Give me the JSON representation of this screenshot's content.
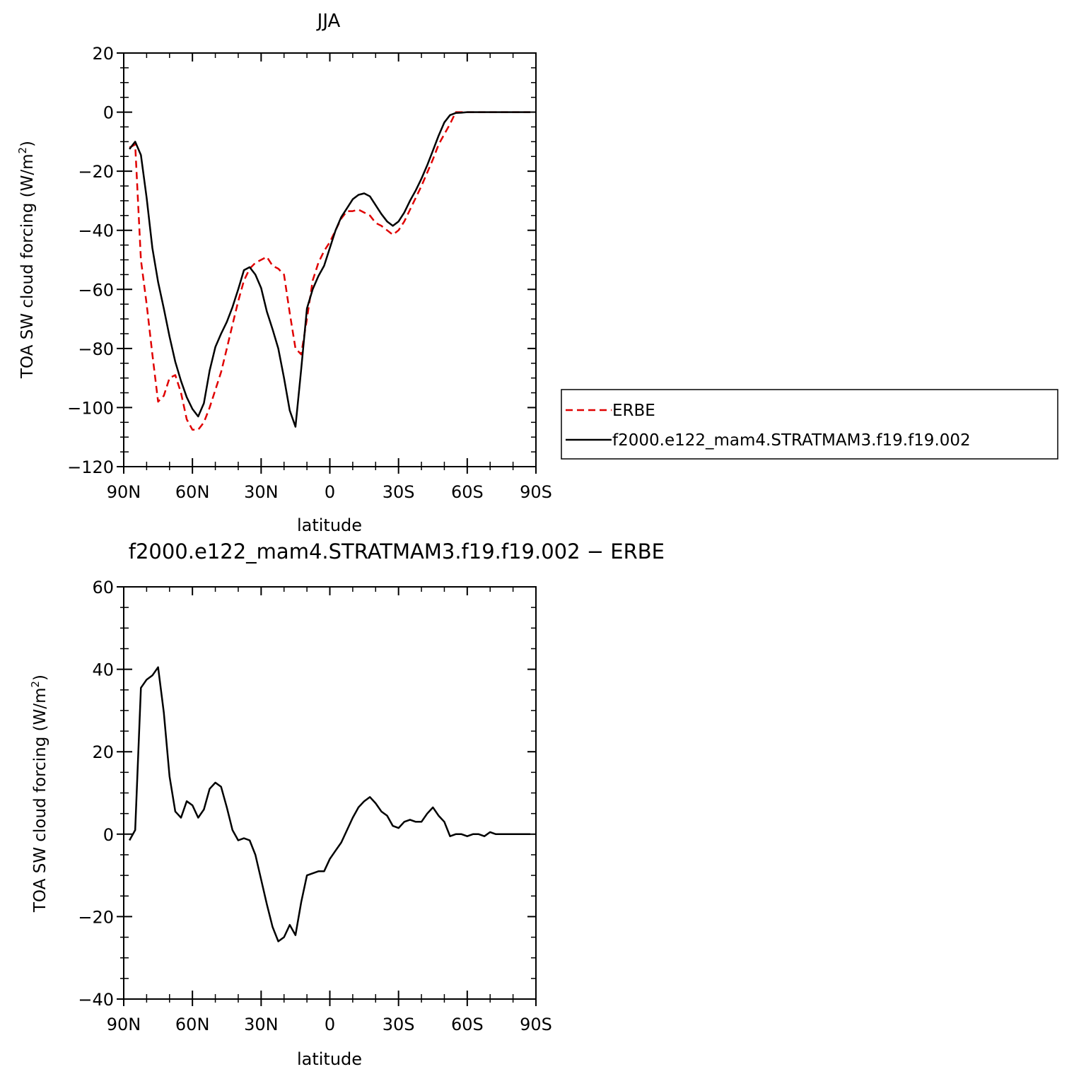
{
  "chart_data": [
    {
      "type": "line",
      "title": "JJA",
      "xlabel": "latitude",
      "ylabel": "TOA SW cloud forcing (W/m",
      "ylabel_sup": "2",
      "ylabel_close": ")",
      "xlim": [
        90,
        -90
      ],
      "ylim": [
        -120,
        20
      ],
      "x_ticks": [
        {
          "value": 90,
          "label": "90N"
        },
        {
          "value": 60,
          "label": "60N"
        },
        {
          "value": 30,
          "label": "30N"
        },
        {
          "value": 0,
          "label": "0"
        },
        {
          "value": -30,
          "label": "30S"
        },
        {
          "value": -60,
          "label": "60S"
        },
        {
          "value": -90,
          "label": "90S"
        }
      ],
      "y_ticks": [
        {
          "value": 20,
          "label": "20"
        },
        {
          "value": 0,
          "label": "0"
        },
        {
          "value": -20,
          "label": "−20"
        },
        {
          "value": -40,
          "label": "−40"
        },
        {
          "value": -60,
          "label": "−60"
        },
        {
          "value": -80,
          "label": "−80"
        },
        {
          "value": -100,
          "label": "−100"
        },
        {
          "value": -120,
          "label": "−120"
        }
      ],
      "grid": false,
      "legend_position": "right",
      "series": [
        {
          "name": "ERBE",
          "color": "#e00000",
          "dash": "dashed",
          "x": [
            87.5,
            85,
            82.5,
            80,
            77.5,
            75,
            72.5,
            70,
            67.5,
            65,
            62.5,
            60,
            57.5,
            55,
            52.5,
            50,
            47.5,
            45,
            42.5,
            40,
            37.5,
            35,
            32.5,
            30,
            27.5,
            25,
            22.5,
            20,
            17.5,
            15,
            12.5,
            10,
            7.5,
            5,
            2.5,
            0,
            -2.5,
            -5,
            -7.5,
            -10,
            -12.5,
            -15,
            -17.5,
            -20,
            -22.5,
            -25,
            -27.5,
            -30,
            -32.5,
            -35,
            -37.5,
            -40,
            -42.5,
            -45,
            -47.5,
            -50,
            -52.5,
            -55,
            -57.5,
            -60,
            -62.5,
            -65,
            -67.5,
            -70,
            -72.5,
            -75,
            -77.5,
            -80,
            -82.5,
            -85,
            -87.5
          ],
          "y": [
            -12,
            -11,
            -50,
            -65,
            -82,
            -98,
            -96,
            -90,
            -89,
            -95,
            -104,
            -107.5,
            -107.5,
            -105,
            -100,
            -94,
            -88,
            -80,
            -72,
            -64,
            -57,
            -53,
            -51,
            -50,
            -49,
            -52,
            -53,
            -55,
            -68,
            -80,
            -82,
            -70,
            -57,
            -51,
            -47,
            -44,
            -40,
            -36,
            -33.5,
            -33.5,
            -33,
            -34,
            -35,
            -37.5,
            -38.5,
            -40,
            -41.5,
            -40,
            -37,
            -33,
            -29,
            -25,
            -20.5,
            -16,
            -11,
            -7.5,
            -4,
            0,
            0,
            0,
            0,
            0,
            0,
            0,
            0,
            0,
            0,
            0,
            0,
            0,
            0
          ]
        },
        {
          "name": "f2000.e122_mam4.STRATMAM3.f19.f19.002",
          "color": "#000000",
          "dash": "solid",
          "x": [
            87.5,
            85,
            82.5,
            80,
            77.5,
            75,
            72.5,
            70,
            67.5,
            65,
            62.5,
            60,
            57.5,
            55,
            52.5,
            50,
            47.5,
            45,
            42.5,
            40,
            37.5,
            35,
            32.5,
            30,
            27.5,
            25,
            22.5,
            20,
            17.5,
            15,
            12.5,
            10,
            7.5,
            5,
            2.5,
            0,
            -2.5,
            -5,
            -7.5,
            -10,
            -12.5,
            -15,
            -17.5,
            -20,
            -22.5,
            -25,
            -27.5,
            -30,
            -32.5,
            -35,
            -37.5,
            -40,
            -42.5,
            -45,
            -47.5,
            -50,
            -52.5,
            -55,
            -57.5,
            -60,
            -62.5,
            -65,
            -67.5,
            -70,
            -72.5,
            -75,
            -77.5,
            -80,
            -82.5,
            -85,
            -87.5
          ],
          "y": [
            -12.5,
            -10,
            -14.5,
            -29,
            -46,
            -57.5,
            -66.5,
            -76,
            -84.5,
            -91,
            -96.5,
            -100.5,
            -103,
            -98.5,
            -87.5,
            -79.5,
            -75,
            -71,
            -66,
            -60,
            -53.5,
            -52.5,
            -55,
            -59.5,
            -67.5,
            -73.5,
            -80,
            -90,
            -101,
            -106.5,
            -87,
            -66.5,
            -60,
            -55.5,
            -52,
            -46,
            -40,
            -35.5,
            -32.5,
            -29.5,
            -28,
            -27.5,
            -28.5,
            -31.5,
            -34.5,
            -37,
            -38.5,
            -37,
            -34,
            -30,
            -26.5,
            -22.5,
            -18,
            -13,
            -8,
            -3.5,
            -1,
            -0.3,
            -0.2,
            0,
            0,
            0,
            0,
            0,
            0,
            0,
            0,
            0,
            0,
            0,
            0
          ]
        }
      ]
    },
    {
      "type": "line",
      "title": "f2000.e122_mam4.STRATMAM3.f19.f19.002 − ERBE",
      "xlabel": "latitude",
      "ylabel": "TOA SW cloud forcing (W/m",
      "ylabel_sup": "2",
      "ylabel_close": ")",
      "xlim": [
        90,
        -90
      ],
      "ylim": [
        -40,
        60
      ],
      "x_ticks": [
        {
          "value": 90,
          "label": "90N"
        },
        {
          "value": 60,
          "label": "60N"
        },
        {
          "value": 30,
          "label": "30N"
        },
        {
          "value": 0,
          "label": "0"
        },
        {
          "value": -30,
          "label": "30S"
        },
        {
          "value": -60,
          "label": "60S"
        },
        {
          "value": -90,
          "label": "90S"
        }
      ],
      "y_ticks": [
        {
          "value": 60,
          "label": "60"
        },
        {
          "value": 40,
          "label": "40"
        },
        {
          "value": 20,
          "label": "20"
        },
        {
          "value": 0,
          "label": "0"
        },
        {
          "value": -20,
          "label": "−20"
        },
        {
          "value": -40,
          "label": "−40"
        }
      ],
      "grid": false,
      "series": [
        {
          "color": "#000000",
          "dash": "solid",
          "x": [
            87.5,
            85,
            82.5,
            80,
            77.5,
            75,
            72.5,
            70,
            67.5,
            65,
            62.5,
            60,
            57.5,
            55,
            52.5,
            50,
            47.5,
            45,
            42.5,
            40,
            37.5,
            35,
            32.5,
            30,
            27.5,
            25,
            22.5,
            20,
            17.5,
            15,
            12.5,
            10,
            7.5,
            5,
            2.5,
            0,
            -2.5,
            -5,
            -7.5,
            -10,
            -12.5,
            -15,
            -17.5,
            -20,
            -22.5,
            -25,
            -27.5,
            -30,
            -32.5,
            -35,
            -37.5,
            -40,
            -42.5,
            -45,
            -47.5,
            -50,
            -52.5,
            -55,
            -57.5,
            -60,
            -62.5,
            -65,
            -67.5,
            -70,
            -72.5,
            -75,
            -77.5,
            -80,
            -82.5,
            -85,
            -87.5
          ],
          "y": [
            -1.5,
            1,
            35.5,
            37.5,
            38.5,
            40.5,
            29.5,
            14,
            5.5,
            4,
            8,
            7,
            4,
            6,
            11,
            12.5,
            11.5,
            6.5,
            1,
            -1.5,
            -1,
            -1.5,
            -5,
            -11,
            -17,
            -22.5,
            -26,
            -25,
            -22,
            -24.5,
            -16.5,
            -10,
            -9.5,
            -9,
            -9,
            -6,
            -4,
            -2,
            1,
            4,
            6.5,
            8,
            9,
            7.5,
            5.5,
            4.5,
            2,
            1.5,
            3,
            3.5,
            3,
            3,
            5,
            6.5,
            4.5,
            3,
            -0.5,
            0,
            0,
            -0.5,
            0,
            0,
            -0.5,
            0.5,
            0,
            0,
            0,
            0,
            0,
            0,
            0
          ]
        }
      ]
    }
  ]
}
